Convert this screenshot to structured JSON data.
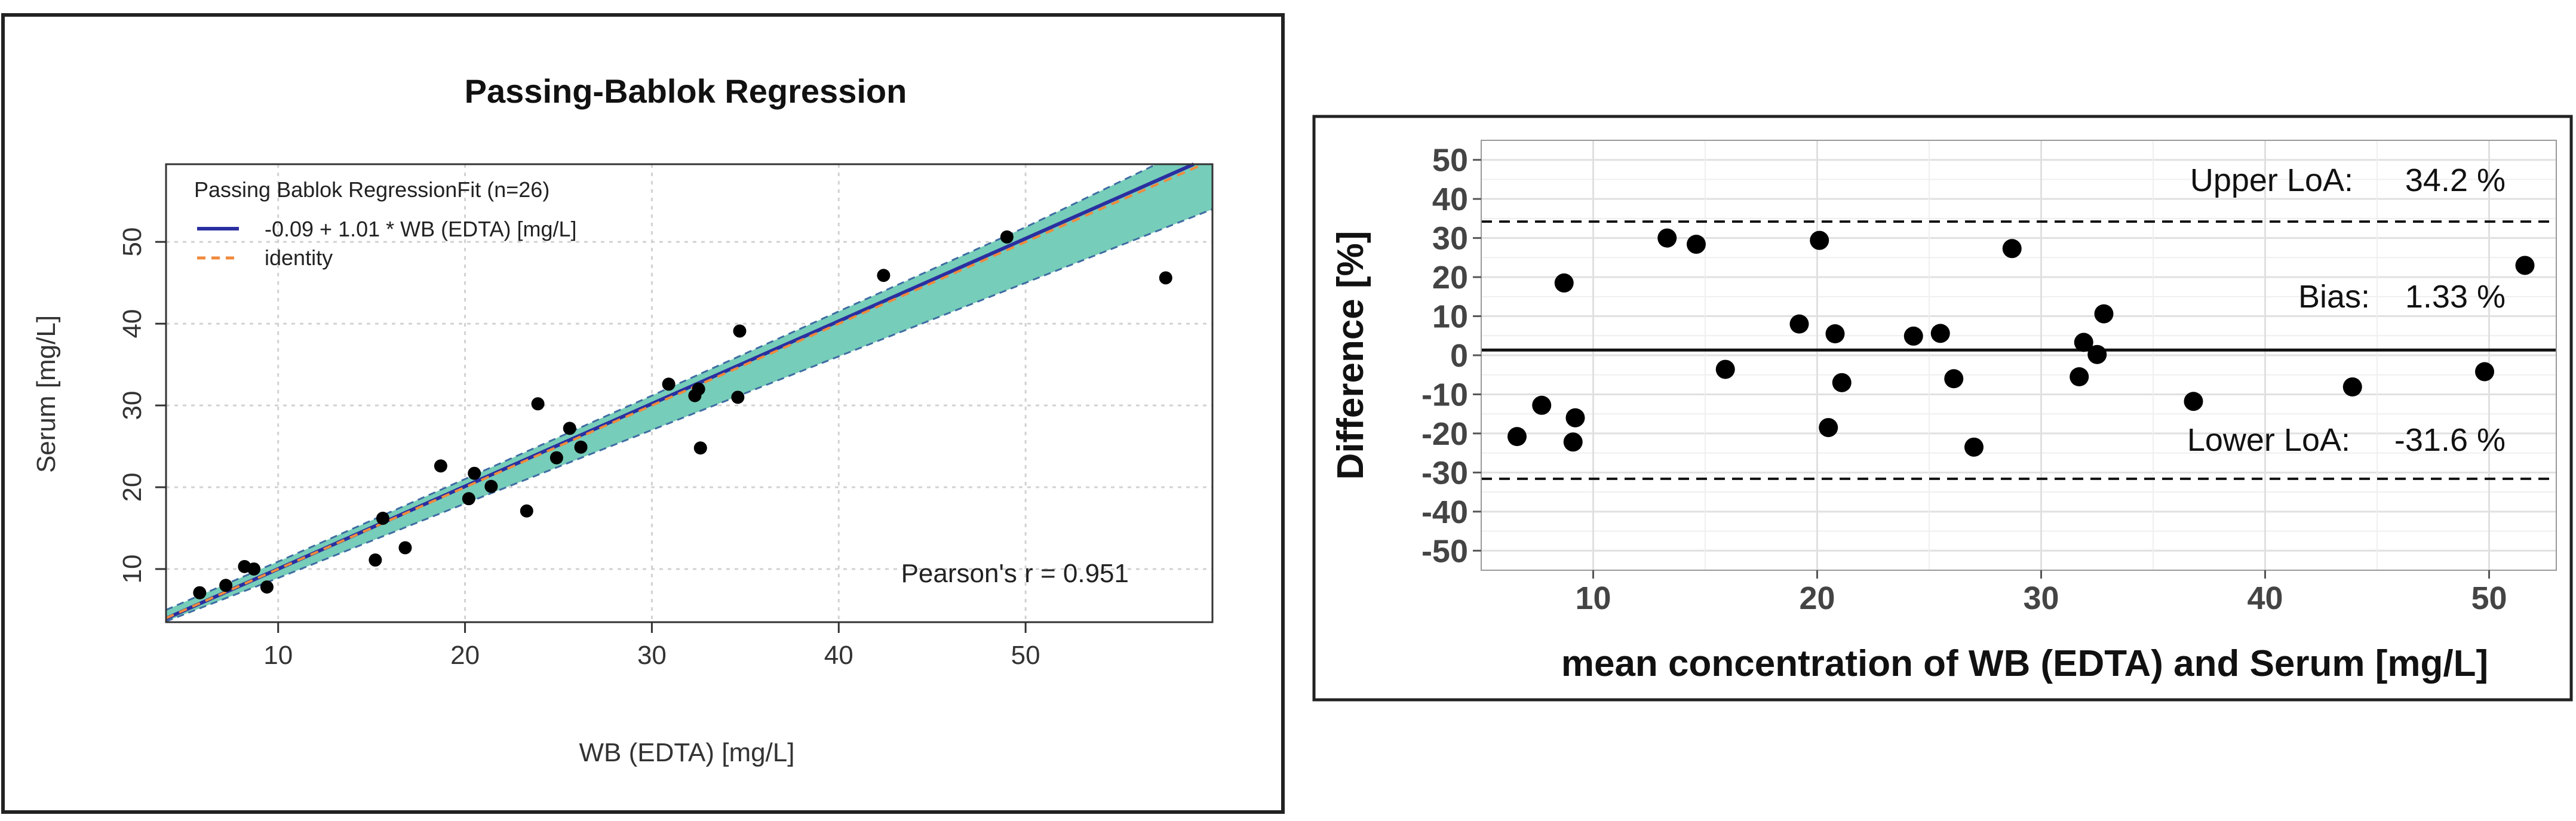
{
  "chart_data": [
    {
      "type": "scatter",
      "title": "Passing-Bablok Regression",
      "xlabel": "WB (EDTA) [mg/L]",
      "ylabel": "Serum [mg/L]",
      "xlim": [
        4,
        60
      ],
      "ylim": [
        3.5,
        59.5
      ],
      "xticks": [
        10,
        20,
        30,
        40,
        50
      ],
      "yticks": [
        10,
        20,
        30,
        40,
        50
      ],
      "grid": true,
      "legend": {
        "position": "top-left",
        "title": "Passing Bablok RegressionFit (n=26)",
        "entries": [
          {
            "label": "-0.09 + 1.01 * WB (EDTA) [mg/L]",
            "color": "#2a2fa0",
            "style": "solid"
          },
          {
            "label": "identity",
            "color": "#f08a3c",
            "style": "dashed"
          }
        ]
      },
      "regression": {
        "intercept": -0.09,
        "slope": 1.01
      },
      "confidence_band": {
        "color": "#76cdb9",
        "lower": [
          [
            4.0,
            3.6
          ],
          [
            10.0,
            8.9
          ],
          [
            20.0,
            18.0
          ],
          [
            30.0,
            27.0
          ],
          [
            40.0,
            36.0
          ],
          [
            50.0,
            45.0
          ],
          [
            60.0,
            54.0
          ]
        ],
        "upper": [
          [
            4.0,
            5.0
          ],
          [
            10.0,
            10.9
          ],
          [
            20.0,
            21.0
          ],
          [
            30.0,
            31.2
          ],
          [
            40.0,
            41.5
          ],
          [
            50.0,
            51.8
          ],
          [
            57.0,
            59.5
          ],
          [
            60.0,
            59.5
          ]
        ]
      },
      "series": [
        {
          "name": "measurements",
          "points": [
            [
              5.8,
              7.1
            ],
            [
              7.2,
              8.0
            ],
            [
              8.2,
              10.3
            ],
            [
              8.7,
              10.0
            ],
            [
              9.4,
              7.8
            ],
            [
              15.2,
              11.1
            ],
            [
              15.6,
              16.2
            ],
            [
              16.8,
              12.6
            ],
            [
              18.7,
              22.6
            ],
            [
              20.2,
              18.6
            ],
            [
              20.5,
              21.7
            ],
            [
              21.4,
              20.1
            ],
            [
              23.3,
              17.1
            ],
            [
              23.9,
              30.2
            ],
            [
              24.9,
              23.6
            ],
            [
              25.6,
              27.2
            ],
            [
              26.2,
              24.9
            ],
            [
              30.9,
              32.6
            ],
            [
              32.3,
              31.2
            ],
            [
              32.5,
              32.0
            ],
            [
              32.6,
              24.8
            ],
            [
              34.6,
              31.0
            ],
            [
              34.7,
              39.1
            ],
            [
              42.4,
              45.9
            ],
            [
              49.0,
              50.6
            ],
            [
              57.5,
              45.6
            ]
          ]
        }
      ],
      "annotations": [
        {
          "text": "Pearson's r = 0.951",
          "x": 47.5,
          "y": 10
        }
      ]
    },
    {
      "type": "scatter",
      "title": "",
      "xlabel": "mean concentration of WB (EDTA) and Serum [mg/L]",
      "ylabel": "Difference [%]",
      "xlim": [
        5,
        53
      ],
      "ylim": [
        -55,
        55
      ],
      "xticks": [
        10,
        20,
        30,
        40,
        50
      ],
      "yticks": [
        -50,
        -40,
        -30,
        -20,
        -10,
        0,
        10,
        20,
        30,
        40,
        50
      ],
      "ytick_labels": [
        "-50",
        "-40",
        "-30",
        "-20",
        "-10",
        "0",
        "10",
        "20",
        "30",
        "40",
        "50"
      ],
      "grid": true,
      "reference_lines": [
        {
          "name": "Upper LoA",
          "value": 34.2,
          "style": "dashed"
        },
        {
          "name": "Bias",
          "value": 1.33,
          "style": "solid"
        },
        {
          "name": "Lower LoA",
          "value": -31.6,
          "style": "dashed"
        }
      ],
      "labels": {
        "upper": {
          "name": "Upper LoA:",
          "value": "34.2 %"
        },
        "bias": {
          "name": "Bias:",
          "value": "1.33 %"
        },
        "lower": {
          "name": "Lower LoA:",
          "value": "-31.6 %"
        }
      },
      "series": [
        {
          "name": "differences",
          "points": [
            [
              6.6,
              -20.8
            ],
            [
              7.7,
              -12.8
            ],
            [
              8.7,
              18.5
            ],
            [
              9.1,
              -22.2
            ],
            [
              9.2,
              -16.0
            ],
            [
              13.3,
              30.0
            ],
            [
              14.6,
              28.4
            ],
            [
              15.9,
              -3.6
            ],
            [
              19.2,
              8.0
            ],
            [
              20.1,
              29.4
            ],
            [
              20.5,
              -18.5
            ],
            [
              20.8,
              5.5
            ],
            [
              21.1,
              -7.0
            ],
            [
              24.3,
              4.9
            ],
            [
              25.5,
              5.6
            ],
            [
              26.1,
              -6.0
            ],
            [
              27.0,
              -23.5
            ],
            [
              28.7,
              27.3
            ],
            [
              31.7,
              -5.5
            ],
            [
              31.9,
              3.3
            ],
            [
              32.5,
              0.2
            ],
            [
              32.8,
              10.6
            ],
            [
              36.8,
              -11.8
            ],
            [
              43.9,
              -8.1
            ],
            [
              49.8,
              -4.2
            ],
            [
              51.6,
              23.0
            ]
          ]
        }
      ]
    }
  ]
}
